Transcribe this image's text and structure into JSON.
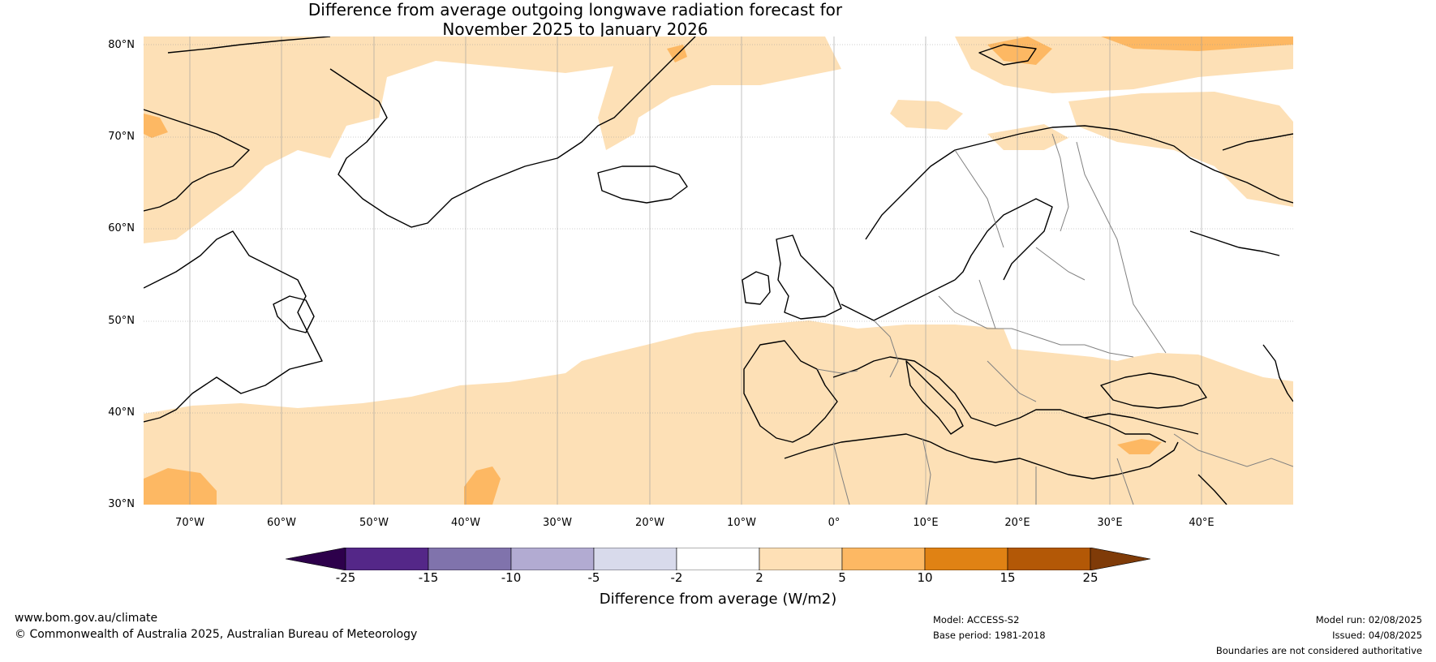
{
  "title": {
    "line1": "Difference from average outgoing longwave radiation forecast for",
    "line2": "November 2025 to January 2026"
  },
  "map": {
    "lat_labels": [
      "80°N",
      "70°N",
      "60°N",
      "50°N",
      "40°N",
      "30°N"
    ],
    "lon_labels": [
      "70°W",
      "60°W",
      "50°W",
      "40°W",
      "30°W",
      "20°W",
      "10°W",
      "0°",
      "10°E",
      "20°E",
      "30°E",
      "40°E"
    ],
    "colors": {
      "land_border": "#000000",
      "country_border": "#808080",
      "grid": "#808080",
      "anomaly_2_5": "#fde0b6",
      "anomaly_5_10": "#fdb863"
    }
  },
  "colorbar": {
    "ticks": [
      "-25",
      "-15",
      "-10",
      "-5",
      "-2",
      "2",
      "5",
      "10",
      "15",
      "25"
    ],
    "colors": [
      "#2d004b",
      "#542788",
      "#8073ac",
      "#b2abd2",
      "#d8daeb",
      "#ffffff",
      "#fee0b6",
      "#fdb863",
      "#e08214",
      "#b35806",
      "#7f3b08"
    ],
    "label": "Difference from average (W/m2)"
  },
  "footer": {
    "website": "www.bom.gov.au/climate",
    "copyright": "© Commonwealth of Australia 2025, Australian Bureau of Meteorology",
    "model": "Model: ACCESS-S2",
    "base_period": "Base period: 1981-2018",
    "model_run": "Model run: 02/08/2025",
    "issued": "Issued: 04/08/2025",
    "disclaimer": "Boundaries are not considered authoritative"
  }
}
